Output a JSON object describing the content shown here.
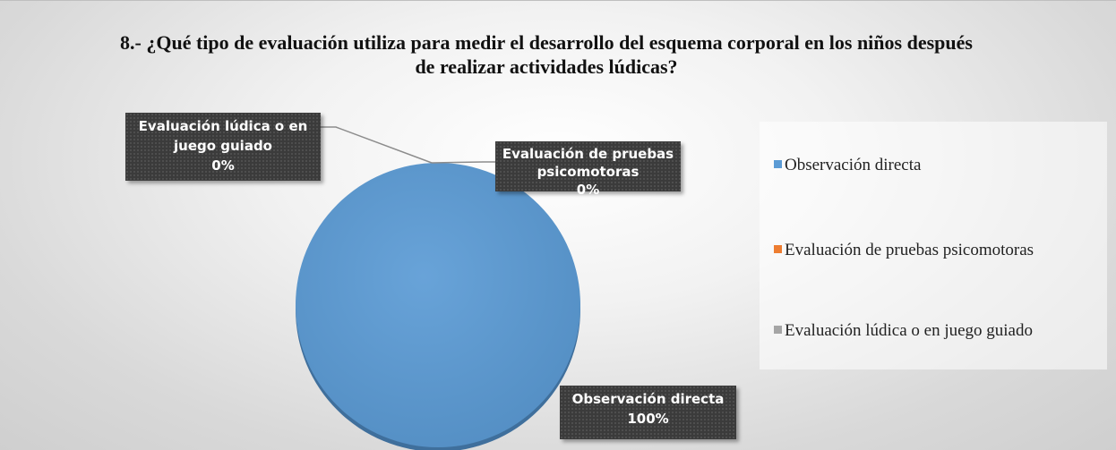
{
  "chart_data": {
    "type": "pie",
    "title": "8.- ¿Qué tipo de evaluación utiliza para medir el desarrollo del esquema corporal en los niños después de realizar actividades lúdicas?",
    "categories": [
      "Observación directa",
      "Evaluación de pruebas psicomotoras",
      "Evaluación lúdica o en juego guiado"
    ],
    "values": [
      100,
      0,
      0
    ],
    "value_labels": [
      "100%",
      "0%",
      "0%"
    ],
    "colors": [
      "#5b9bd5",
      "#ed7d31",
      "#a5a5a5"
    ]
  }
}
